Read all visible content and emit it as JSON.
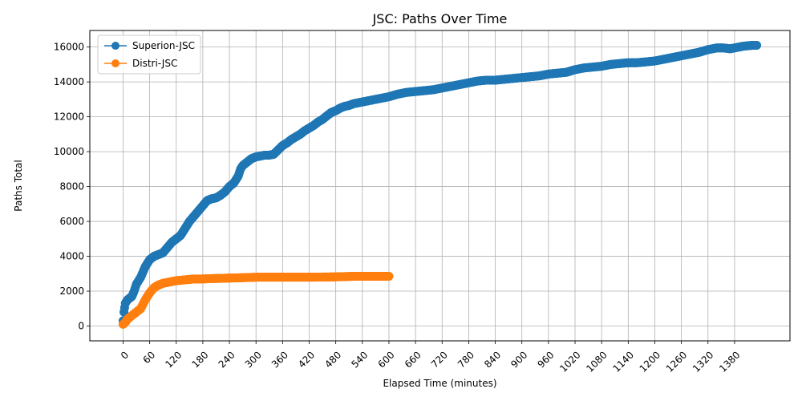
{
  "chart_data": {
    "type": "line",
    "title": "JSC: Paths Over Time",
    "xlabel": "Elapsed Time (minutes)",
    "ylabel": "Paths Total",
    "xlim": [
      -75,
      1505
    ],
    "ylim": [
      -850,
      16950
    ],
    "xticks": [
      0,
      60,
      120,
      180,
      240,
      300,
      360,
      420,
      480,
      540,
      600,
      660,
      720,
      780,
      840,
      900,
      960,
      1020,
      1080,
      1140,
      1200,
      1260,
      1320,
      1380
    ],
    "yticks": [
      0,
      2000,
      4000,
      6000,
      8000,
      10000,
      12000,
      14000,
      16000
    ],
    "grid": true,
    "legend_position": "top-left",
    "series": [
      {
        "name": "Superion-JSC",
        "color": "#1f77b4",
        "points": [
          [
            0,
            300
          ],
          [
            2,
            800
          ],
          [
            5,
            1300
          ],
          [
            10,
            1500
          ],
          [
            20,
            1700
          ],
          [
            25,
            2000
          ],
          [
            30,
            2400
          ],
          [
            40,
            2800
          ],
          [
            50,
            3400
          ],
          [
            60,
            3800
          ],
          [
            70,
            4000
          ],
          [
            80,
            4100
          ],
          [
            90,
            4200
          ],
          [
            100,
            4500
          ],
          [
            110,
            4800
          ],
          [
            120,
            5000
          ],
          [
            130,
            5200
          ],
          [
            140,
            5600
          ],
          [
            150,
            6000
          ],
          [
            160,
            6300
          ],
          [
            170,
            6600
          ],
          [
            180,
            6900
          ],
          [
            190,
            7200
          ],
          [
            200,
            7300
          ],
          [
            210,
            7350
          ],
          [
            220,
            7500
          ],
          [
            230,
            7700
          ],
          [
            240,
            8000
          ],
          [
            250,
            8200
          ],
          [
            260,
            8600
          ],
          [
            265,
            9000
          ],
          [
            270,
            9200
          ],
          [
            280,
            9400
          ],
          [
            290,
            9600
          ],
          [
            300,
            9700
          ],
          [
            310,
            9750
          ],
          [
            320,
            9800
          ],
          [
            330,
            9800
          ],
          [
            340,
            9850
          ],
          [
            350,
            10100
          ],
          [
            360,
            10350
          ],
          [
            370,
            10500
          ],
          [
            380,
            10700
          ],
          [
            390,
            10850
          ],
          [
            400,
            11000
          ],
          [
            410,
            11200
          ],
          [
            420,
            11350
          ],
          [
            430,
            11500
          ],
          [
            440,
            11700
          ],
          [
            450,
            11850
          ],
          [
            460,
            12050
          ],
          [
            470,
            12250
          ],
          [
            480,
            12350
          ],
          [
            490,
            12500
          ],
          [
            500,
            12600
          ],
          [
            510,
            12650
          ],
          [
            520,
            12750
          ],
          [
            540,
            12850
          ],
          [
            560,
            12950
          ],
          [
            580,
            13050
          ],
          [
            600,
            13150
          ],
          [
            620,
            13300
          ],
          [
            640,
            13400
          ],
          [
            660,
            13450
          ],
          [
            680,
            13500
          ],
          [
            700,
            13550
          ],
          [
            720,
            13650
          ],
          [
            740,
            13750
          ],
          [
            760,
            13850
          ],
          [
            780,
            13950
          ],
          [
            800,
            14050
          ],
          [
            820,
            14100
          ],
          [
            840,
            14100
          ],
          [
            860,
            14150
          ],
          [
            880,
            14200
          ],
          [
            900,
            14250
          ],
          [
            920,
            14300
          ],
          [
            940,
            14350
          ],
          [
            960,
            14450
          ],
          [
            980,
            14500
          ],
          [
            1000,
            14550
          ],
          [
            1020,
            14700
          ],
          [
            1040,
            14800
          ],
          [
            1060,
            14850
          ],
          [
            1080,
            14900
          ],
          [
            1100,
            15000
          ],
          [
            1120,
            15050
          ],
          [
            1140,
            15100
          ],
          [
            1160,
            15100
          ],
          [
            1180,
            15150
          ],
          [
            1200,
            15200
          ],
          [
            1220,
            15300
          ],
          [
            1240,
            15400
          ],
          [
            1260,
            15500
          ],
          [
            1280,
            15600
          ],
          [
            1300,
            15700
          ],
          [
            1320,
            15850
          ],
          [
            1340,
            15950
          ],
          [
            1355,
            15950
          ],
          [
            1370,
            15900
          ],
          [
            1380,
            15950
          ],
          [
            1400,
            16050
          ],
          [
            1420,
            16100
          ],
          [
            1430,
            16100
          ]
        ]
      },
      {
        "name": "Distri-JSC",
        "color": "#ff7f0e",
        "points": [
          [
            0,
            100
          ],
          [
            5,
            200
          ],
          [
            10,
            400
          ],
          [
            20,
            600
          ],
          [
            30,
            800
          ],
          [
            40,
            1000
          ],
          [
            50,
            1500
          ],
          [
            60,
            1900
          ],
          [
            70,
            2200
          ],
          [
            80,
            2350
          ],
          [
            90,
            2450
          ],
          [
            100,
            2500
          ],
          [
            120,
            2600
          ],
          [
            140,
            2650
          ],
          [
            160,
            2700
          ],
          [
            180,
            2700
          ],
          [
            200,
            2720
          ],
          [
            240,
            2750
          ],
          [
            280,
            2780
          ],
          [
            300,
            2800
          ],
          [
            360,
            2800
          ],
          [
            420,
            2800
          ],
          [
            480,
            2820
          ],
          [
            520,
            2850
          ],
          [
            560,
            2850
          ],
          [
            600,
            2850
          ]
        ]
      }
    ]
  }
}
